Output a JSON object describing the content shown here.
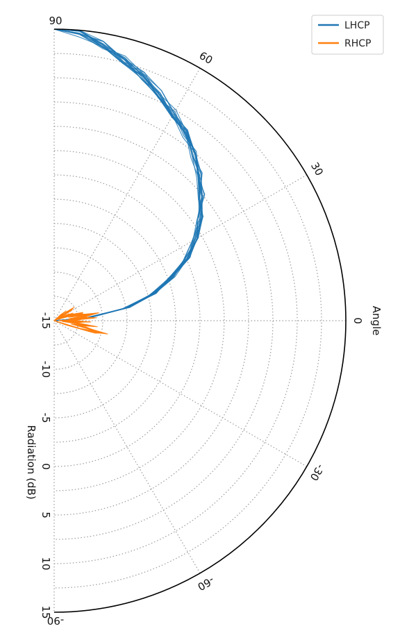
{
  "chart_data": {
    "type": "line",
    "projection": "polar-half",
    "angle_axis": {
      "label": "Angle",
      "range": [
        -90,
        90
      ],
      "ticks": [
        90,
        60,
        30,
        0,
        -30,
        -60,
        -90
      ],
      "tick_labels": [
        "90",
        "60",
        "30",
        "0",
        "-30",
        "-60",
        "-90"
      ]
    },
    "radial_axis": {
      "label": "Radiation (dB)",
      "range": [
        -15,
        15
      ],
      "ticks": [
        -15,
        -10,
        -5,
        0,
        5,
        10,
        15
      ],
      "tick_labels": [
        "-15",
        "-10",
        "-5",
        "0",
        "5",
        "10",
        "15"
      ],
      "ring_step": 2.5
    },
    "grid": true,
    "legend": {
      "position": "top-right"
    },
    "series": [
      {
        "name": "LHCP",
        "color": "#1f77b4",
        "angle": [
          0,
          5,
          10,
          15,
          20,
          25,
          30,
          35,
          40,
          45,
          50,
          55,
          60,
          65,
          70,
          75,
          80,
          85,
          90
        ],
        "values": [
          -15,
          -11.5,
          -7.5,
          -4.5,
          -2.2,
          0,
          1.8,
          3.3,
          4.8,
          6.1,
          7.3,
          8.5,
          9.6,
          10.7,
          11.8,
          12.8,
          13.8,
          14.6,
          15
        ],
        "traces": 16,
        "spread": 0.45
      },
      {
        "name": "RHCP",
        "color": "#ff7f0e",
        "angle": [
          -20,
          -17,
          -14,
          -11,
          -8,
          -5,
          -2,
          1,
          4,
          7,
          10,
          13,
          16,
          19,
          22,
          25,
          28,
          31,
          34,
          37,
          40,
          43
        ],
        "values": [
          -14.6,
          -11.5,
          -10.2,
          -12.4,
          -11.2,
          -13.4,
          -12.1,
          -13.6,
          -11.5,
          -12.7,
          -11.2,
          -12.8,
          -12.6,
          -13.7,
          -13.6,
          -14.2,
          -14.5,
          -13.6,
          -13.3,
          -14.4,
          -14.1,
          -14.8
        ],
        "traces": 14,
        "spread": 0.9
      }
    ]
  }
}
